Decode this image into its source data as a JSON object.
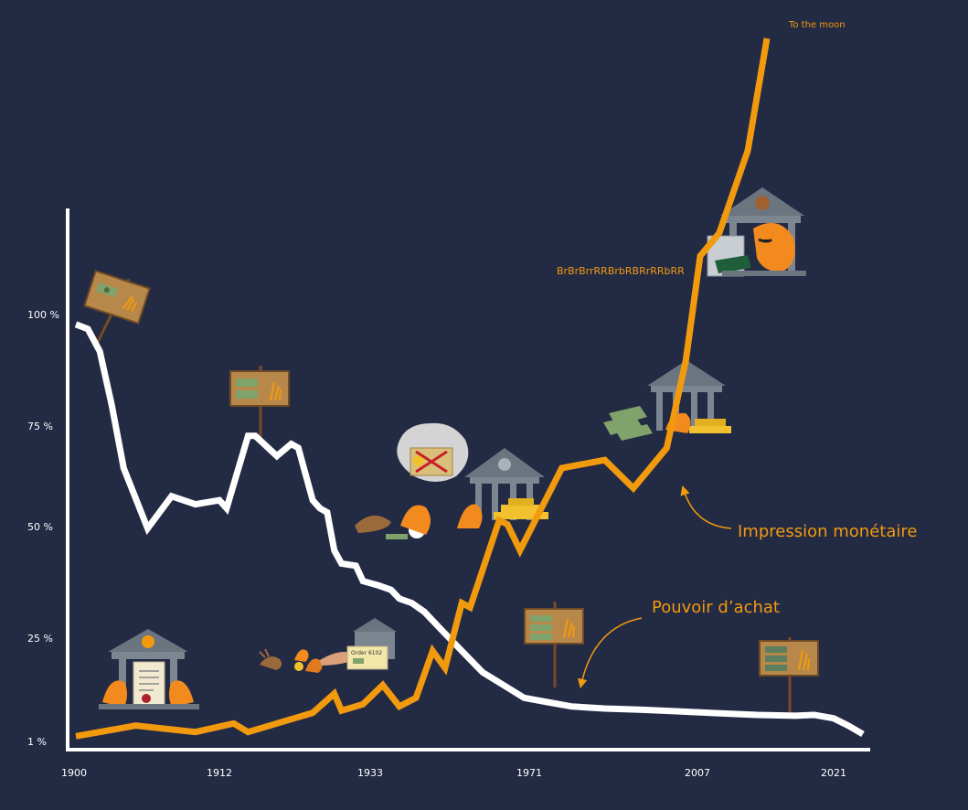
{
  "chart_data": {
    "type": "line",
    "y_ticks": [
      "100 %",
      "75 %",
      "50 %",
      "25 %",
      "1 %"
    ],
    "x_ticks": [
      "1900",
      "1912",
      "1933",
      "1971",
      "2007",
      "2021"
    ],
    "series": [
      {
        "color": "#ffffff",
        "points": [
          [
            1900,
            98
          ],
          [
            1901,
            97
          ],
          [
            1902,
            92
          ],
          [
            1903,
            80
          ],
          [
            1904,
            65
          ],
          [
            1906,
            50
          ],
          [
            1908,
            58
          ],
          [
            1910,
            56
          ],
          [
            1912,
            57
          ],
          [
            1913,
            55
          ],
          [
            1916,
            73
          ],
          [
            1917,
            73
          ],
          [
            1920,
            68
          ],
          [
            1922,
            71
          ],
          [
            1923,
            70
          ],
          [
            1925,
            57
          ],
          [
            1926,
            55
          ],
          [
            1927,
            54
          ],
          [
            1928,
            45
          ],
          [
            1929,
            42
          ],
          [
            1931,
            41.5
          ],
          [
            1932,
            38
          ],
          [
            1935,
            37
          ],
          [
            1938,
            36
          ],
          [
            1940,
            34
          ],
          [
            1943,
            33
          ],
          [
            1946,
            31
          ],
          [
            1950,
            27
          ],
          [
            1955,
            22
          ],
          [
            1960,
            17
          ],
          [
            1965,
            14
          ],
          [
            1970,
            11
          ],
          [
            1975,
            10
          ],
          [
            1980,
            9
          ],
          [
            1987,
            8.5
          ],
          [
            1995,
            8.2
          ],
          [
            2003,
            7.8
          ],
          [
            2008,
            7.5
          ],
          [
            2013,
            7
          ],
          [
            2017,
            6.8
          ],
          [
            2019,
            7
          ],
          [
            2021,
            6.2
          ],
          [
            2023,
            4.5
          ],
          [
            2025,
            2.5
          ]
        ]
      },
      {
        "color": "#f29a0e",
        "points": [
          [
            1900,
            2
          ],
          [
            1905,
            4.5
          ],
          [
            1910,
            3
          ],
          [
            1914,
            5
          ],
          [
            1916,
            3
          ],
          [
            1920,
            5
          ],
          [
            1925,
            7.5
          ],
          [
            1928,
            12
          ],
          [
            1929,
            8
          ],
          [
            1932,
            9.5
          ],
          [
            1936,
            14
          ],
          [
            1940,
            9
          ],
          [
            1944,
            11
          ],
          [
            1948,
            22
          ],
          [
            1951,
            18
          ],
          [
            1955,
            33
          ],
          [
            1957,
            32
          ],
          [
            1964,
            52
          ],
          [
            1966,
            51
          ],
          [
            1969,
            45
          ],
          [
            1978,
            65
          ],
          [
            1987,
            67
          ],
          [
            1993,
            60
          ],
          [
            2000,
            70
          ],
          [
            2004,
            90
          ],
          [
            2007,
            118
          ],
          [
            2009,
            125
          ],
          [
            2012,
            150
          ],
          [
            2014,
            184
          ]
        ]
      }
    ],
    "annotations": {
      "to_the_moon": "To the moon",
      "printer_sound": "BrBrBrrRRBrbRBRrRRbRR",
      "impression": "Impression monétaire",
      "pouvoir": "Pouvoir d’achat",
      "order": "Order 6102"
    },
    "grid": false
  },
  "colors": {
    "background": "#232a44",
    "axis": "#ffffff",
    "purchasing_power": "#ffffff",
    "money_printing": "#f29a0e"
  },
  "illustrations": [
    "sign-banknote-icon",
    "bank-signing-icon",
    "rabbits-order-icon",
    "bank-gold-exchange-icon",
    "bank-printing-icon",
    "bank-printer-icon"
  ]
}
